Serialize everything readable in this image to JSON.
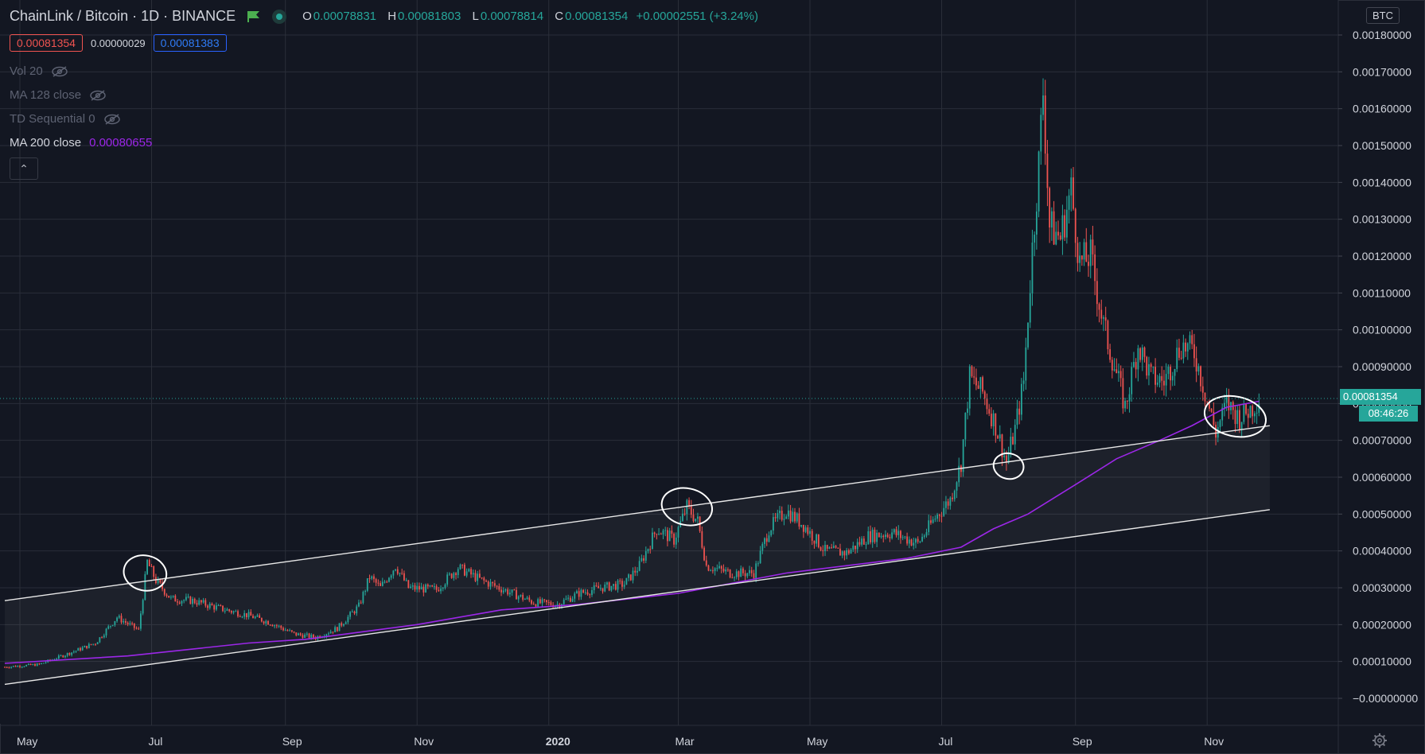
{
  "header": {
    "symbol_title": "ChainLink / Bitcoin · 1D · BINANCE",
    "ohlc": {
      "o_label": "O",
      "o": "0.00078831",
      "h_label": "H",
      "h": "0.00081803",
      "l_label": "L",
      "l": "0.00078814",
      "c_label": "C",
      "c": "0.00081354",
      "change": "+0.00002551 (+3.24%)"
    },
    "bid": "0.00081354",
    "spread": "0.00000029",
    "ask": "0.00081383"
  },
  "indicators": [
    {
      "label": "Vol 20",
      "value": "",
      "visible": false
    },
    {
      "label": "MA 128 close",
      "value": "",
      "visible": false
    },
    {
      "label": "TD Sequential 0",
      "value": "",
      "visible": false
    },
    {
      "label": "MA 200 close",
      "value": "0.00080655",
      "visible": true
    }
  ],
  "currency_badge": "BTC",
  "last_price_label": "0.00081354",
  "countdown_label": "08:46:26",
  "colors": {
    "background": "#131722",
    "up": "#26a69a",
    "down": "#ef5350",
    "ma": "#9c27e8",
    "grid": "#2a2e39",
    "text": "#d1d4dc"
  },
  "icons": {
    "flag": "flag-icon",
    "status": "status-dot-icon",
    "eye_hidden": "eye-off-icon",
    "collapse": "chevron-up-icon",
    "settings": "gear-icon"
  },
  "chart_data": {
    "type": "candlestick",
    "title": "",
    "ylim": [
      -5e-05,
      0.00185
    ],
    "y_ticks": [
      "0.00180000",
      "0.00170000",
      "0.00160000",
      "0.00150000",
      "0.00140000",
      "0.00130000",
      "0.00120000",
      "0.00110000",
      "0.00100000",
      "0.00090000",
      "0.00080000",
      "0.00070000",
      "0.00060000",
      "0.00050000",
      "0.00040000",
      "0.00030000",
      "0.00020000",
      "0.00010000",
      "−0.00000000"
    ],
    "y_tick_values": [
      0.0018,
      0.0017,
      0.0016,
      0.0015,
      0.0014,
      0.0013,
      0.0012,
      0.0011,
      0.001,
      0.0009,
      0.0008,
      0.0007,
      0.0006,
      0.0005,
      0.0004,
      0.0003,
      0.0002,
      0.0001,
      0
    ],
    "x_ticks": [
      {
        "label": "May",
        "date": "2019-05-01",
        "bold": false
      },
      {
        "label": "Jul",
        "date": "2019-07-01",
        "bold": false
      },
      {
        "label": "Sep",
        "date": "2019-09-01",
        "bold": false
      },
      {
        "label": "Nov",
        "date": "2019-11-01",
        "bold": false
      },
      {
        "label": "2020",
        "date": "2020-01-01",
        "bold": true
      },
      {
        "label": "Mar",
        "date": "2020-03-01",
        "bold": false
      },
      {
        "label": "May",
        "date": "2020-05-01",
        "bold": false
      },
      {
        "label": "Jul",
        "date": "2020-07-01",
        "bold": false
      },
      {
        "label": "Sep",
        "date": "2020-09-01",
        "bold": false
      },
      {
        "label": "Nov",
        "date": "2020-11-01",
        "bold": false
      }
    ],
    "x_range": [
      "2019-04-24",
      "2020-12-31"
    ],
    "close_series": [
      [
        "2019-04-24",
        8.5e-05
      ],
      [
        "2019-05-10",
        9.2e-05
      ],
      [
        "2019-05-25",
        0.000125
      ],
      [
        "2019-06-05",
        0.00015
      ],
      [
        "2019-06-15",
        0.00022
      ],
      [
        "2019-06-25",
        0.000185
      ],
      [
        "2019-06-29",
        0.00037
      ],
      [
        "2019-07-03",
        0.00032
      ],
      [
        "2019-07-10",
        0.00027
      ],
      [
        "2019-07-20",
        0.000265
      ],
      [
        "2019-08-01",
        0.000245
      ],
      [
        "2019-08-15",
        0.000225
      ],
      [
        "2019-08-25",
        0.000205
      ],
      [
        "2019-09-05",
        0.000175
      ],
      [
        "2019-09-15",
        0.000165
      ],
      [
        "2019-09-25",
        0.00019
      ],
      [
        "2019-10-05",
        0.00025
      ],
      [
        "2019-10-10",
        0.00033
      ],
      [
        "2019-10-15",
        0.0003
      ],
      [
        "2019-10-22",
        0.00036
      ],
      [
        "2019-10-28",
        0.0003
      ],
      [
        "2019-11-10",
        0.000295
      ],
      [
        "2019-11-20",
        0.000355
      ],
      [
        "2019-12-01",
        0.00032
      ],
      [
        "2019-12-15",
        0.000285
      ],
      [
        "2019-12-25",
        0.00026
      ],
      [
        "2020-01-05",
        0.000255
      ],
      [
        "2020-01-15",
        0.000285
      ],
      [
        "2020-01-25",
        0.0003
      ],
      [
        "2020-02-05",
        0.00031
      ],
      [
        "2020-02-12",
        0.00036
      ],
      [
        "2020-02-20",
        0.00046
      ],
      [
        "2020-02-28",
        0.00043
      ],
      [
        "2020-03-05",
        0.00052
      ],
      [
        "2020-03-10",
        0.00048
      ],
      [
        "2020-03-14",
        0.00036
      ],
      [
        "2020-03-25",
        0.00034
      ],
      [
        "2020-04-05",
        0.00034
      ],
      [
        "2020-04-12",
        0.00046
      ],
      [
        "2020-04-20",
        0.00051
      ],
      [
        "2020-04-28",
        0.00047
      ],
      [
        "2020-05-08",
        0.0004
      ],
      [
        "2020-05-18",
        0.000395
      ],
      [
        "2020-05-28",
        0.00044
      ],
      [
        "2020-06-08",
        0.00045
      ],
      [
        "2020-06-20",
        0.00042
      ],
      [
        "2020-06-28",
        0.00049
      ],
      [
        "2020-07-05",
        0.00054
      ],
      [
        "2020-07-10",
        0.00064
      ],
      [
        "2020-07-14",
        0.00087
      ],
      [
        "2020-07-20",
        0.00083
      ],
      [
        "2020-07-26",
        0.00074
      ],
      [
        "2020-07-31",
        0.00064
      ],
      [
        "2020-08-04",
        0.00073
      ],
      [
        "2020-08-08",
        0.00086
      ],
      [
        "2020-08-12",
        0.00122
      ],
      [
        "2020-08-15",
        0.00145
      ],
      [
        "2020-08-17",
        0.00165
      ],
      [
        "2020-08-20",
        0.00128
      ],
      [
        "2020-08-25",
        0.00125
      ],
      [
        "2020-08-30",
        0.00138
      ],
      [
        "2020-09-03",
        0.00118
      ],
      [
        "2020-09-08",
        0.0012
      ],
      [
        "2020-09-14",
        0.00101
      ],
      [
        "2020-09-20",
        0.00088
      ],
      [
        "2020-09-24",
        0.00079
      ],
      [
        "2020-09-30",
        0.00096
      ],
      [
        "2020-10-06",
        0.00087
      ],
      [
        "2020-10-12",
        0.00086
      ],
      [
        "2020-10-20",
        0.00096
      ],
      [
        "2020-10-26",
        0.00094
      ],
      [
        "2020-10-31",
        0.00083
      ],
      [
        "2020-11-05",
        0.00072
      ],
      [
        "2020-11-10",
        0.0008
      ],
      [
        "2020-11-16",
        0.00076
      ],
      [
        "2020-11-22",
        0.00079
      ],
      [
        "2020-11-25",
        0.000814
      ]
    ],
    "ma200": [
      [
        "2019-04-24",
        9.5e-05
      ],
      [
        "2019-06-20",
        0.000115
      ],
      [
        "2019-08-15",
        0.00015
      ],
      [
        "2019-09-10",
        0.00016
      ],
      [
        "2019-11-01",
        0.0002
      ],
      [
        "2019-12-10",
        0.00024
      ],
      [
        "2020-01-15",
        0.000255
      ],
      [
        "2020-03-01",
        0.000285
      ],
      [
        "2020-04-20",
        0.00034
      ],
      [
        "2020-06-15",
        0.00038
      ],
      [
        "2020-07-10",
        0.00041
      ],
      [
        "2020-07-25",
        0.00046
      ],
      [
        "2020-08-10",
        0.0005
      ],
      [
        "2020-09-01",
        0.00058
      ],
      [
        "2020-09-20",
        0.00065
      ],
      [
        "2020-10-10",
        0.0007
      ],
      [
        "2020-10-25",
        0.00074
      ],
      [
        "2020-11-10",
        0.00079
      ],
      [
        "2020-11-25",
        0.000806
      ]
    ],
    "channel_lines": [
      {
        "name": "",
        "points": [
          [
            "2019-04-24",
            0.000265
          ],
          [
            "2020-11-30",
            0.00074
          ]
        ]
      },
      {
        "name": "",
        "points": [
          [
            "2019-04-24",
            3.78e-05
          ],
          [
            "2020-11-30",
            0.000512
          ]
        ]
      }
    ],
    "highlight_circles": [
      {
        "date": "2019-06-28",
        "price": 0.00034
      },
      {
        "date": "2020-03-05",
        "price": 0.00052
      },
      {
        "date": "2020-08-01",
        "price": 0.00063
      },
      {
        "date": "2020-11-14",
        "price": 0.000765
      }
    ]
  }
}
